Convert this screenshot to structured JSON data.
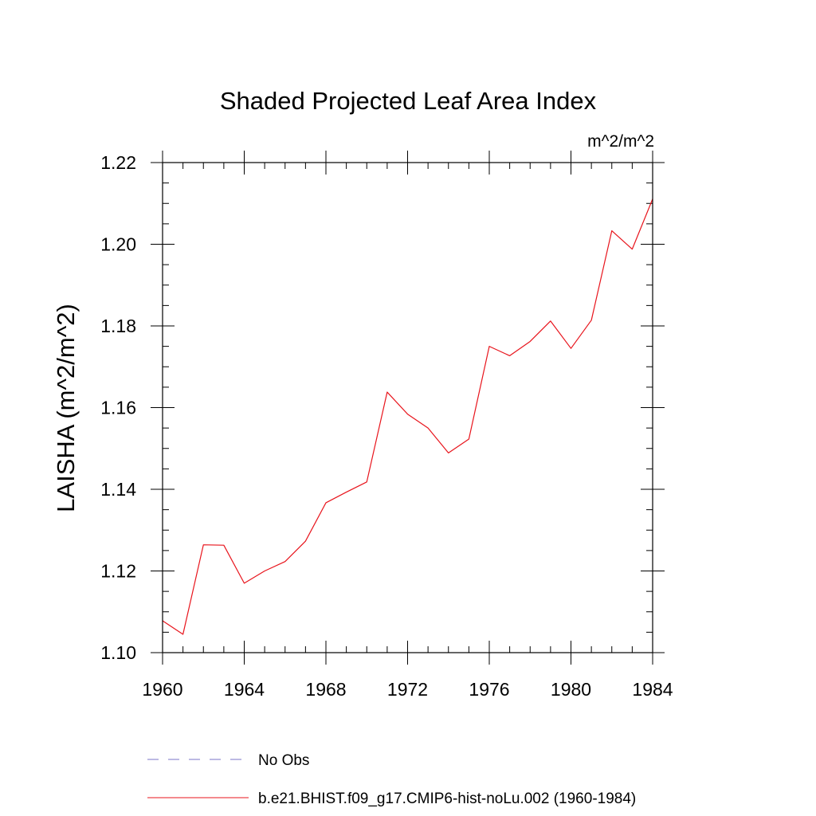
{
  "chart_data": {
    "type": "line",
    "title": "Shaded Projected Leaf Area Index",
    "units_label": "m^2/m^2",
    "xlabel": "",
    "ylabel": "LAISHA  (m^2/m^2)",
    "xlim": [
      1960,
      1984
    ],
    "ylim": [
      1.1,
      1.22
    ],
    "x_ticks": [
      1960,
      1964,
      1968,
      1972,
      1976,
      1980,
      1984
    ],
    "x_tick_labels": [
      "1960",
      "1964",
      "1968",
      "1972",
      "1976",
      "1980",
      "1984"
    ],
    "y_ticks": [
      1.1,
      1.12,
      1.14,
      1.16,
      1.18,
      1.2,
      1.22
    ],
    "y_tick_labels": [
      "1.10",
      "1.12",
      "1.14",
      "1.16",
      "1.18",
      "1.20",
      "1.22"
    ],
    "grid": false,
    "legend_position": "bottom",
    "series": [
      {
        "name": "b.e21.BHIST.f09_g17.CMIP6-hist-noLu.002 (1960-1984)",
        "color": "#e8141c",
        "style": "solid",
        "x": [
          1960,
          1961,
          1962,
          1963,
          1964,
          1965,
          1966,
          1967,
          1968,
          1969,
          1970,
          1971,
          1972,
          1973,
          1974,
          1975,
          1976,
          1977,
          1978,
          1979,
          1980,
          1981,
          1982,
          1983,
          1984
        ],
        "y": [
          1.1078,
          1.1045,
          1.1264,
          1.1263,
          1.117,
          1.12,
          1.1223,
          1.1273,
          1.1367,
          1.1393,
          1.1418,
          1.1638,
          1.1584,
          1.155,
          1.1489,
          1.1523,
          1.175,
          1.1727,
          1.1762,
          1.1812,
          1.1745,
          1.1814,
          1.2033,
          1.1988,
          1.2111
        ]
      }
    ],
    "legend_entries": [
      {
        "label": "No Obs",
        "color": "#7a74c8",
        "style": "dashed"
      },
      {
        "label": "b.e21.BHIST.f09_g17.CMIP6-hist-noLu.002 (1960-1984)",
        "color": "#e8141c",
        "style": "solid"
      }
    ]
  }
}
